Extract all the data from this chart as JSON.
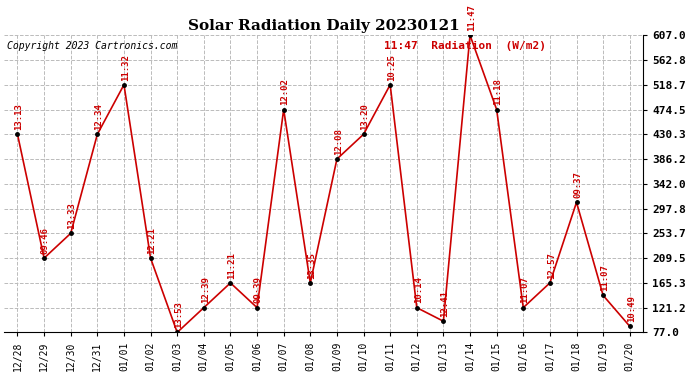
{
  "title": "Solar Radiation Daily 20230121",
  "copyright": "Copyright 2023 Cartronics.com",
  "legend_label": "11:47  Radiation  (W/m2)",
  "ylim": [
    77.0,
    607.0
  ],
  "yticks": [
    77.0,
    121.2,
    165.3,
    209.5,
    253.7,
    297.8,
    342.0,
    386.2,
    430.3,
    474.5,
    518.7,
    562.8,
    607.0
  ],
  "ytick_labels": [
    "77.0",
    "121.2",
    "165.3",
    "209.5",
    "253.7",
    "297.8",
    "342.0",
    "386.2",
    "430.3",
    "474.5",
    "518.7",
    "562.8",
    "607.0"
  ],
  "background_color": "#ffffff",
  "grid_color": "#bbbbbb",
  "line_color": "#cc0000",
  "marker_color": "#000000",
  "dates": [
    "12/28",
    "12/29",
    "12/30",
    "12/31",
    "01/01",
    "01/02",
    "01/03",
    "01/04",
    "01/05",
    "01/06",
    "01/07",
    "01/08",
    "01/09",
    "01/10",
    "01/11",
    "01/12",
    "01/13",
    "01/14",
    "01/15",
    "01/16",
    "01/17",
    "01/18",
    "01/19",
    "01/20"
  ],
  "values": [
    430.3,
    209.5,
    253.7,
    430.3,
    518.7,
    209.5,
    77.0,
    121.2,
    165.3,
    121.2,
    474.5,
    165.3,
    386.2,
    430.3,
    518.7,
    121.2,
    97.0,
    607.0,
    474.5,
    121.2,
    165.3,
    309.0,
    143.0,
    88.0
  ],
  "annotations": [
    "13:13",
    "09:46",
    "13:33",
    "12:34",
    "11:32",
    "12:21",
    "13:53",
    "12:39",
    "11:21",
    "09:39",
    "12:02",
    "13:35",
    "12:08",
    "13:20",
    "10:25",
    "10:14",
    "12:41",
    "11:47",
    "11:18",
    "11:07",
    "12:57",
    "09:37",
    "11:07",
    "10:49"
  ],
  "title_fontsize": 11,
  "axis_fontsize": 7,
  "annotation_fontsize": 6.5,
  "legend_fontsize": 8,
  "copyright_fontsize": 7
}
